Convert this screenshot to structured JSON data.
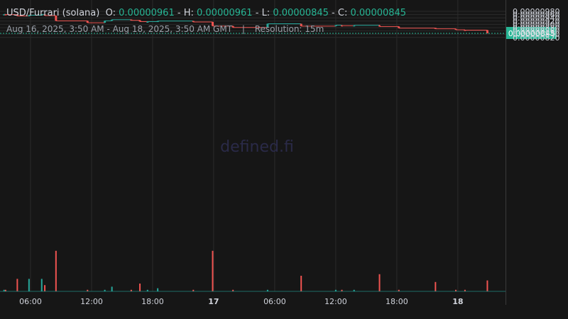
{
  "header": {
    "pair": "USD/Furrari (solana)",
    "o_label": "O:",
    "o_value": "0.00000961",
    "h_label": "H:",
    "h_value": "0.00000961",
    "l_label": "L:",
    "l_value": "0.00000845",
    "c_label": "C:",
    "c_value": "0.00000845",
    "range": "Aug 16, 2025, 3:50 AM - Aug 18, 2025, 3:50 AM GMT",
    "separator": "|",
    "resolution": "Resolution: 15m"
  },
  "watermark": "defined.fi",
  "colors": {
    "up": "#26a69a",
    "down": "#ef5350",
    "grid": "#2b2b2b",
    "price_line": "#26b594",
    "background": "#161616"
  },
  "chart_data": {
    "type": "candlestick",
    "y_ticks": [
      "0.00000980",
      "0.00000960",
      "0.00000940",
      "0.00000920",
      "0.00000900",
      "0.00000880",
      "0.00000860",
      "0.00000840",
      "0.00000820"
    ],
    "y_tick_values": [
      9.8e-06,
      9.6e-06,
      9.4e-06,
      9.2e-06,
      9e-06,
      8.8e-06,
      8.6e-06,
      8.4e-06,
      8.2e-06
    ],
    "x_ticks": [
      {
        "label": "06:00",
        "t": 6,
        "bold": false
      },
      {
        "label": "12:00",
        "t": 12,
        "bold": false
      },
      {
        "label": "18:00",
        "t": 18,
        "bold": false
      },
      {
        "label": "17",
        "t": 24,
        "bold": true
      },
      {
        "label": "06:00",
        "t": 30,
        "bold": false
      },
      {
        "label": "12:00",
        "t": 36,
        "bold": false
      },
      {
        "label": "18:00",
        "t": 42,
        "bold": false
      },
      {
        "label": "18",
        "t": 48,
        "bold": true
      }
    ],
    "last_price": "0.00000845",
    "last_price_value": 8.45e-06,
    "candles": [
      {
        "t": 3.4,
        "o": 9.62e-06,
        "h": 9.62e-06,
        "l": 9.62e-06,
        "c": 9.62e-06,
        "v": 1
      },
      {
        "t": 3.55,
        "o": 9.62e-06,
        "h": 9.62e-06,
        "l": 9.6e-06,
        "c": 9.6e-06,
        "v": 1
      },
      {
        "t": 4.7,
        "o": 9.6e-06,
        "h": 9.6e-06,
        "l": 9.52e-06,
        "c": 9.52e-06,
        "v": 8
      },
      {
        "t": 5.85,
        "o": 9.52e-06,
        "h": 9.56e-06,
        "l": 9.52e-06,
        "c": 9.56e-06,
        "v": 8
      },
      {
        "t": 7.1,
        "o": 9.56e-06,
        "h": 9.61e-06,
        "l": 9.56e-06,
        "c": 9.61e-06,
        "v": 8
      },
      {
        "t": 7.4,
        "o": 9.61e-06,
        "h": 9.61e-06,
        "l": 9.54e-06,
        "c": 9.54e-06,
        "v": 4
      },
      {
        "t": 8.5,
        "o": 9.54e-06,
        "h": 9.54e-06,
        "l": 9.22e-06,
        "c": 9.22e-06,
        "v": 26
      },
      {
        "t": 11.6,
        "o": 9.22e-06,
        "h": 9.22e-06,
        "l": 9.1e-06,
        "c": 9.1e-06,
        "v": 1
      },
      {
        "t": 13.3,
        "o": 9.1e-06,
        "h": 9.22e-06,
        "l": 9.1e-06,
        "c": 9.22e-06,
        "v": 1
      },
      {
        "t": 14.0,
        "o": 9.22e-06,
        "h": 9.29e-06,
        "l": 9.22e-06,
        "c": 9.29e-06,
        "v": 3
      },
      {
        "t": 15.9,
        "o": 9.3e-06,
        "h": 9.3e-06,
        "l": 9.25e-06,
        "c": 9.25e-06,
        "v": 1
      },
      {
        "t": 16.75,
        "o": 9.26e-06,
        "h": 9.26e-06,
        "l": 9.17e-06,
        "c": 9.17e-06,
        "v": 5
      },
      {
        "t": 17.5,
        "o": 9.17e-06,
        "h": 9.18e-06,
        "l": 9.17e-06,
        "c": 9.17e-06,
        "v": 1
      },
      {
        "t": 18.5,
        "o": 9.17e-06,
        "h": 9.21e-06,
        "l": 9.17e-06,
        "c": 9.21e-06,
        "v": 2
      },
      {
        "t": 22.0,
        "o": 9.21e-06,
        "h": 9.21e-06,
        "l": 9.15e-06,
        "c": 9.15e-06,
        "v": 1
      },
      {
        "t": 23.9,
        "o": 9.15e-06,
        "h": 9.15e-06,
        "l": 8.9e-06,
        "c": 8.9e-06,
        "v": 26
      },
      {
        "t": 25.9,
        "o": 8.9e-06,
        "h": 8.9e-06,
        "l": 8.81e-06,
        "c": 8.81e-06,
        "v": 1
      },
      {
        "t": 29.3,
        "o": 8.81e-06,
        "h": 9.04e-06,
        "l": 8.81e-06,
        "c": 9.04e-06,
        "v": 1
      },
      {
        "t": 32.6,
        "o": 9.04e-06,
        "h": 9.04e-06,
        "l": 8.89e-06,
        "c": 8.89e-06,
        "v": 10
      },
      {
        "t": 36.0,
        "o": 8.9e-06,
        "h": 8.95e-06,
        "l": 8.9e-06,
        "c": 8.95e-06,
        "v": 1
      },
      {
        "t": 36.6,
        "o": 8.94e-06,
        "h": 8.94e-06,
        "l": 8.92e-06,
        "c": 8.92e-06,
        "v": 1
      },
      {
        "t": 37.8,
        "o": 8.93e-06,
        "h": 8.94e-06,
        "l": 8.93e-06,
        "c": 8.94e-06,
        "v": 1
      },
      {
        "t": 40.3,
        "o": 8.94e-06,
        "h": 8.97e-06,
        "l": 8.87e-06,
        "c": 8.87e-06,
        "v": 11
      },
      {
        "t": 42.2,
        "o": 8.87e-06,
        "h": 8.87e-06,
        "l": 8.77e-06,
        "c": 8.77e-06,
        "v": 1
      },
      {
        "t": 45.8,
        "o": 8.78e-06,
        "h": 8.78e-06,
        "l": 8.73e-06,
        "c": 8.73e-06,
        "v": 6
      },
      {
        "t": 47.8,
        "o": 8.73e-06,
        "h": 8.73e-06,
        "l": 8.67e-06,
        "c": 8.67e-06,
        "v": 1
      },
      {
        "t": 48.7,
        "o": 8.67e-06,
        "h": 8.67e-06,
        "l": 8.65e-06,
        "c": 8.65e-06,
        "v": 1
      },
      {
        "t": 50.9,
        "o": 8.65e-06,
        "h": 8.65e-06,
        "l": 8.45e-06,
        "c": 8.45e-06,
        "v": 7
      }
    ]
  }
}
